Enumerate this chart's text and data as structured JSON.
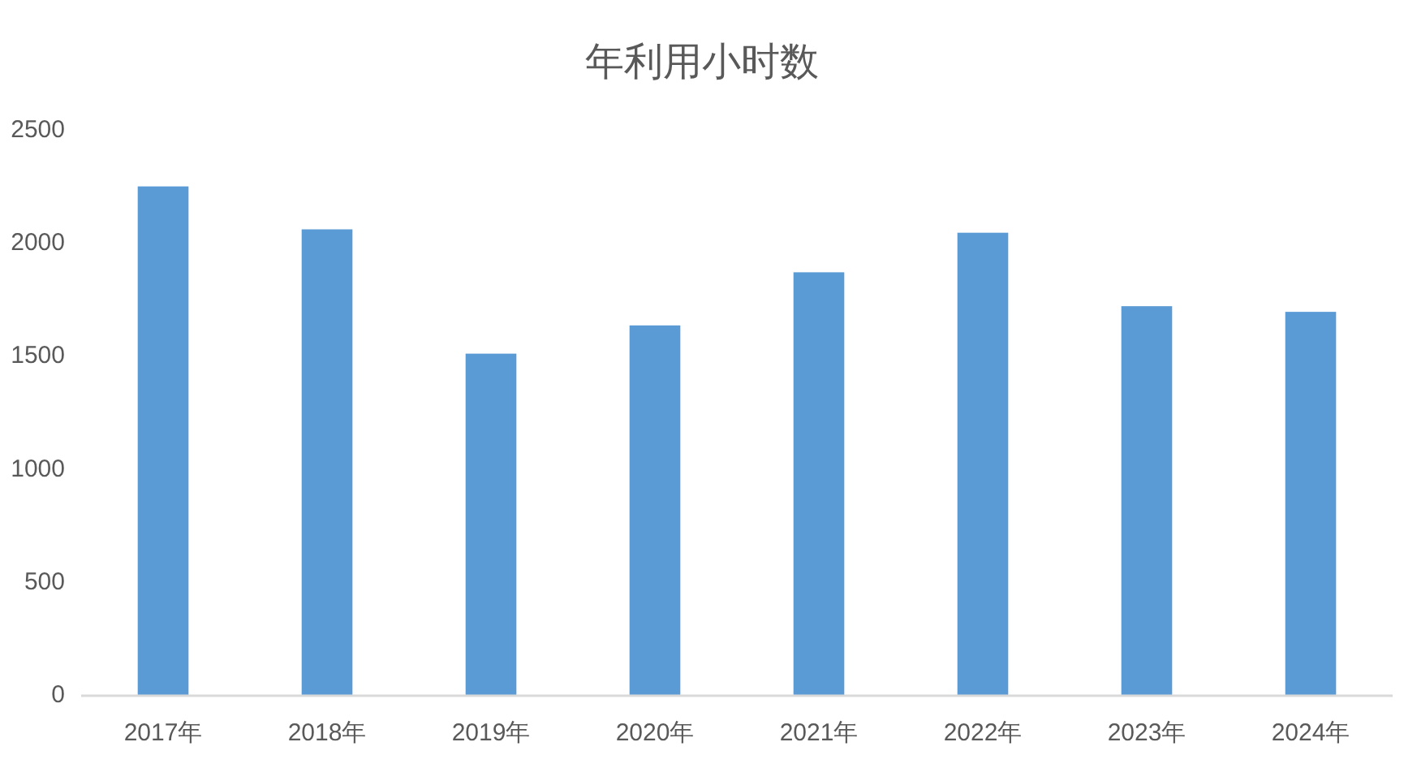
{
  "chart_data": {
    "type": "bar",
    "title": "年利用小时数",
    "categories": [
      "2017年",
      "2018年",
      "2019年",
      "2020年",
      "2021年",
      "2022年",
      "2023年",
      "2024年"
    ],
    "values": [
      2250,
      2060,
      1510,
      1635,
      1870,
      2045,
      1720,
      1695
    ],
    "color": "#5b9bd5",
    "ylim": [
      0,
      2500
    ],
    "yticks": [
      0,
      500,
      1000,
      1500,
      2000,
      2500
    ],
    "grid": false
  }
}
